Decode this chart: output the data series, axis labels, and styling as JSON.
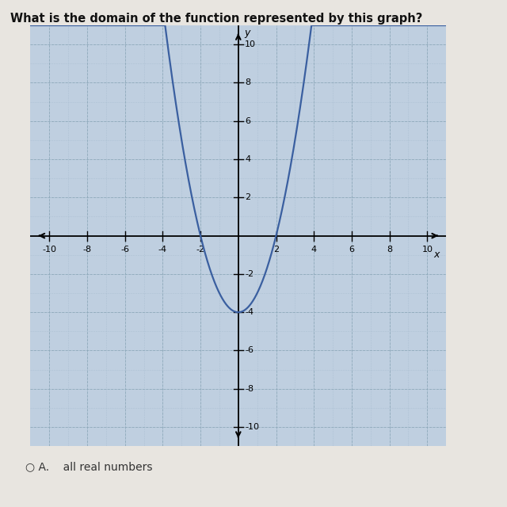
{
  "title": "What is the domain of the function represented by this graph?",
  "title_fontsize": 10.5,
  "plot_bg_color": "#bfcfe0",
  "outer_bg_color": "#e8e5e0",
  "curve_color": "#3a5fa0",
  "curve_lw": 1.6,
  "xlim": [
    -11,
    11
  ],
  "ylim": [
    -11,
    11
  ],
  "xticks": [
    -10,
    -8,
    -6,
    -4,
    -2,
    2,
    4,
    6,
    8,
    10
  ],
  "yticks": [
    -10,
    -8,
    -6,
    -4,
    -2,
    2,
    4,
    6,
    8,
    10
  ],
  "xlabel": "x",
  "ylabel": "y",
  "tick_label_fontsize": 8,
  "axis_label_fontsize": 9,
  "grid_color": "#8faabb",
  "grid_minor_color": "#a8bccf",
  "vertex_x": 0,
  "vertex_y": -4,
  "a_coeff": 1,
  "option_text": "A.    all real numbers",
  "option_fontsize": 10
}
